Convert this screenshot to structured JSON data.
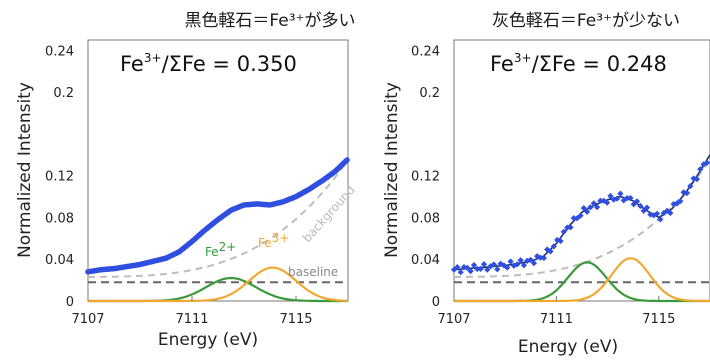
{
  "chart_data": [
    {
      "type": "scatter",
      "title": "黒色軽石＝Fe³⁺が多い",
      "annotation": {
        "prefix": "Fe",
        "sup": "3+",
        "suffix": "/ΣFe = 0.350"
      },
      "xlabel": "Energy (eV)",
      "ylabel": "Normalized Intensity",
      "xlim": [
        7107,
        7117
      ],
      "ylim": [
        0,
        0.25
      ],
      "x_ticks": [
        "7107",
        "7111",
        "7115"
      ],
      "y_ticks": [
        "0",
        "0.04",
        "0.08",
        "0.12",
        "0.2",
        "0.24"
      ],
      "y_tick_values": [
        0,
        0.04,
        0.08,
        0.12,
        0.2,
        0.24
      ],
      "peaks": [
        {
          "label": "Fe",
          "sup": "2+",
          "center": 7112.5,
          "height": 0.022,
          "width": 0.95,
          "color": "#3a9a3a"
        },
        {
          "label": "Fe",
          "sup": "3+",
          "center": 7114.1,
          "height": 0.032,
          "width": 0.9,
          "color": "#f0a830"
        }
      ],
      "baseline_value": 0.018,
      "baseline_label": "baseline",
      "background_label": "background",
      "data_points": {
        "x": [
          7107.0,
          7107.5,
          7108.0,
          7108.5,
          7109.0,
          7109.5,
          7110.0,
          7110.5,
          7111.0,
          7111.5,
          7112.0,
          7112.5,
          7113.0,
          7113.5,
          7114.0,
          7114.5,
          7115.0,
          7115.5,
          7116.0,
          7116.5,
          7117.0
        ],
        "y": [
          0.028,
          0.03,
          0.031,
          0.033,
          0.035,
          0.038,
          0.041,
          0.047,
          0.057,
          0.068,
          0.078,
          0.087,
          0.092,
          0.093,
          0.092,
          0.095,
          0.1,
          0.107,
          0.115,
          0.124,
          0.136
        ]
      },
      "colors": {
        "data": "#2f4fe0",
        "baseline": "#666666",
        "background": "#bdbdbd"
      }
    },
    {
      "type": "scatter",
      "title": "灰色軽石＝Fe³⁺が少ない",
      "annotation": {
        "prefix": "Fe",
        "sup": "3+",
        "suffix": "/ΣFe = 0.248"
      },
      "xlabel": "Energy (eV)",
      "ylabel": "Normalized Intensity",
      "xlim": [
        7107,
        7117
      ],
      "ylim": [
        0,
        0.25
      ],
      "x_ticks": [
        "7107",
        "7111",
        "7115"
      ],
      "y_ticks": [
        "0",
        "0.04",
        "0.08",
        "0.12",
        "0.2",
        "0.24"
      ],
      "y_tick_values": [
        0,
        0.04,
        0.08,
        0.12,
        0.2,
        0.24
      ],
      "peaks": [
        {
          "center": 7112.2,
          "height": 0.037,
          "width": 0.75,
          "color": "#3a9a3a"
        },
        {
          "center": 7113.9,
          "height": 0.041,
          "width": 0.75,
          "color": "#f0a830"
        }
      ],
      "baseline_value": 0.018,
      "data_points": {
        "x": [
          7107.0,
          7107.5,
          7108.0,
          7108.5,
          7109.0,
          7109.5,
          7110.0,
          7110.5,
          7111.0,
          7111.5,
          7112.0,
          7112.5,
          7113.0,
          7113.5,
          7114.0,
          7114.5,
          7115.0,
          7115.5,
          7116.0,
          7116.5,
          7117.0
        ],
        "y": [
          0.03,
          0.031,
          0.032,
          0.033,
          0.034,
          0.036,
          0.038,
          0.043,
          0.055,
          0.072,
          0.085,
          0.092,
          0.097,
          0.1,
          0.096,
          0.087,
          0.08,
          0.088,
          0.102,
          0.12,
          0.14
        ]
      },
      "colors": {
        "data": "#2f4fe0",
        "fit": "#1f2f70",
        "baseline": "#666666",
        "background": "#bdbdbd"
      }
    }
  ]
}
